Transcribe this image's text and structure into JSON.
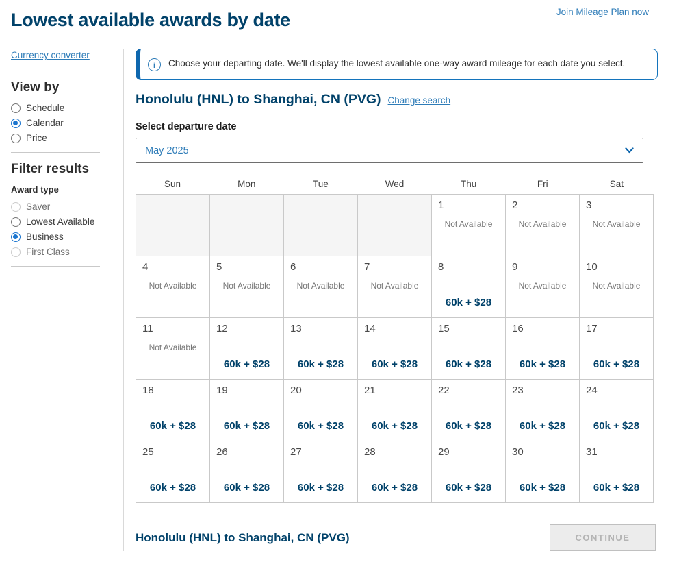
{
  "page": {
    "title": "Lowest available awards by date",
    "join_link": "Join Mileage Plan now"
  },
  "sidebar": {
    "currency_link": "Currency converter",
    "view_by": {
      "heading": "View by",
      "options": [
        {
          "label": "Schedule",
          "state": "unselected"
        },
        {
          "label": "Calendar",
          "state": "selected"
        },
        {
          "label": "Price",
          "state": "unselected"
        }
      ]
    },
    "filter": {
      "heading": "Filter results",
      "subheading": "Award type",
      "options": [
        {
          "label": "Saver",
          "state": "disabled"
        },
        {
          "label": "Lowest Available",
          "state": "unselected"
        },
        {
          "label": "Business",
          "state": "selected"
        },
        {
          "label": "First Class",
          "state": "disabled"
        }
      ]
    }
  },
  "banner": {
    "icon_glyph": "i",
    "text": "Choose your departing date. We'll display the lowest available one-way award mileage for each date you select."
  },
  "route": {
    "heading": "Honolulu (HNL) to Shanghai, CN (PVG)",
    "change_link": "Change search"
  },
  "departure": {
    "label": "Select departure date",
    "selected_month": "May 2025"
  },
  "calendar": {
    "day_names": [
      "Sun",
      "Mon",
      "Tue",
      "Wed",
      "Thu",
      "Fri",
      "Sat"
    ],
    "not_available_text": "Not Available",
    "price_text": "60k + $28",
    "weeks": [
      [
        null,
        null,
        null,
        null,
        {
          "day": "1",
          "na": true
        },
        {
          "day": "2",
          "na": true
        },
        {
          "day": "3",
          "na": true
        }
      ],
      [
        {
          "day": "4",
          "na": true
        },
        {
          "day": "5",
          "na": true
        },
        {
          "day": "6",
          "na": true
        },
        {
          "day": "7",
          "na": true
        },
        {
          "day": "8",
          "price": true
        },
        {
          "day": "9",
          "na": true
        },
        {
          "day": "10",
          "na": true
        }
      ],
      [
        {
          "day": "11",
          "na": true
        },
        {
          "day": "12",
          "price": true
        },
        {
          "day": "13",
          "price": true
        },
        {
          "day": "14",
          "price": true
        },
        {
          "day": "15",
          "price": true
        },
        {
          "day": "16",
          "price": true
        },
        {
          "day": "17",
          "price": true
        }
      ],
      [
        {
          "day": "18",
          "price": true
        },
        {
          "day": "19",
          "price": true
        },
        {
          "day": "20",
          "price": true
        },
        {
          "day": "21",
          "price": true
        },
        {
          "day": "22",
          "price": true
        },
        {
          "day": "23",
          "price": true
        },
        {
          "day": "24",
          "price": true
        }
      ],
      [
        {
          "day": "25",
          "price": true
        },
        {
          "day": "26",
          "price": true
        },
        {
          "day": "27",
          "price": true
        },
        {
          "day": "28",
          "price": true
        },
        {
          "day": "29",
          "price": true
        },
        {
          "day": "30",
          "price": true
        },
        {
          "day": "31",
          "price": true
        }
      ]
    ]
  },
  "footer": {
    "route": "Honolulu (HNL) to Shanghai, CN (PVG)",
    "continue_label": "CONTINUE"
  },
  "colors": {
    "navy": "#01426a",
    "link_blue": "#2e7cb8",
    "radio_blue": "#1a75cf",
    "banner_border": "#1474bc",
    "grid_border": "#c9c9c9",
    "empty_cell_bg": "#f5f5f5",
    "disabled_btn_bg": "#ececec"
  }
}
